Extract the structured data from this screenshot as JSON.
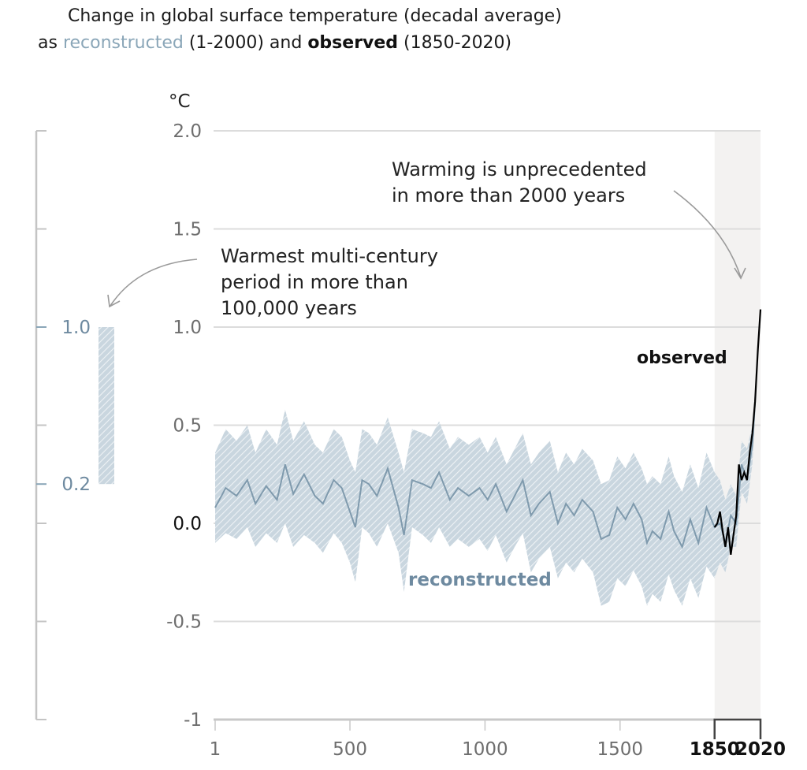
{
  "title": {
    "line1": "Change in global surface temperature (decadal average)",
    "line2_prefix": "as ",
    "line2_reconstructed": "reconstructed",
    "line2_mid": " (1-2000) and ",
    "line2_observed": "observed",
    "line2_suffix": " (1850-2020)"
  },
  "colors": {
    "reconstructed": "#7f9aad",
    "reconstructed_band": "#b9cad6",
    "observed": "#000000",
    "grid": "#dcdcdc",
    "shade": "#f3f2f1"
  },
  "chart_data": {
    "type": "line",
    "title": "Change in global surface temperature (decadal average) as reconstructed (1-2000) and observed (1850-2020)",
    "ylabel": "°C",
    "xlabel": "",
    "ylim": [
      -1,
      2
    ],
    "xlim": [
      1,
      2020
    ],
    "grid": true,
    "y_ticks": [
      "2.0",
      "1.5",
      "1.0",
      "0.5",
      "0.0",
      "-0.5",
      "-1"
    ],
    "y_tick_values": [
      2.0,
      1.5,
      1.0,
      0.5,
      0.0,
      -0.5,
      -1
    ],
    "x_ticks": [
      "1",
      "500",
      "1000",
      "1500"
    ],
    "x_tick_values": [
      1,
      500,
      1000,
      1500
    ],
    "x_ticks_bold": [
      "1850",
      "2020"
    ],
    "x_ticks_bold_values": [
      1850,
      2020
    ],
    "shaded_period": [
      1850,
      2020
    ],
    "series": [
      {
        "name": "reconstructed",
        "x": [
          1,
          40,
          80,
          120,
          150,
          190,
          230,
          260,
          290,
          330,
          370,
          400,
          440,
          470,
          500,
          520,
          545,
          570,
          600,
          640,
          680,
          700,
          730,
          770,
          800,
          830,
          870,
          900,
          940,
          980,
          1010,
          1040,
          1080,
          1110,
          1140,
          1170,
          1200,
          1240,
          1270,
          1300,
          1330,
          1360,
          1400,
          1430,
          1460,
          1490,
          1520,
          1550,
          1580,
          1600,
          1620,
          1650,
          1680,
          1700,
          1730,
          1760,
          1790,
          1820,
          1850,
          1870,
          1890,
          1910,
          1930,
          1950,
          1970,
          1990,
          2000
        ],
        "y": [
          0.08,
          0.18,
          0.14,
          0.22,
          0.1,
          0.19,
          0.12,
          0.3,
          0.15,
          0.25,
          0.14,
          0.1,
          0.22,
          0.18,
          0.06,
          -0.02,
          0.22,
          0.2,
          0.14,
          0.28,
          0.08,
          -0.06,
          0.22,
          0.2,
          0.18,
          0.26,
          0.12,
          0.18,
          0.14,
          0.18,
          0.12,
          0.2,
          0.06,
          0.14,
          0.22,
          0.04,
          0.1,
          0.16,
          0.0,
          0.1,
          0.04,
          0.12,
          0.06,
          -0.08,
          -0.06,
          0.08,
          0.02,
          0.1,
          0.02,
          -0.1,
          -0.04,
          -0.08,
          0.06,
          -0.04,
          -0.12,
          0.02,
          -0.1,
          0.08,
          -0.02,
          0.0,
          -0.1,
          0.04,
          0.0,
          0.3,
          0.22,
          0.4,
          0.62
        ],
        "lower": [
          -0.1,
          -0.05,
          -0.08,
          -0.02,
          -0.12,
          -0.05,
          -0.1,
          0.0,
          -0.12,
          -0.06,
          -0.1,
          -0.15,
          -0.05,
          -0.1,
          -0.2,
          -0.3,
          -0.02,
          -0.05,
          -0.12,
          0.0,
          -0.15,
          -0.35,
          -0.02,
          -0.06,
          -0.1,
          -0.02,
          -0.12,
          -0.08,
          -0.12,
          -0.08,
          -0.14,
          -0.06,
          -0.2,
          -0.12,
          -0.05,
          -0.25,
          -0.18,
          -0.12,
          -0.28,
          -0.2,
          -0.25,
          -0.18,
          -0.25,
          -0.42,
          -0.4,
          -0.28,
          -0.32,
          -0.24,
          -0.32,
          -0.42,
          -0.36,
          -0.4,
          -0.26,
          -0.34,
          -0.42,
          -0.28,
          -0.38,
          -0.22,
          -0.28,
          -0.2,
          -0.25,
          -0.12,
          -0.12,
          0.16,
          0.1,
          0.3,
          0.55
        ],
        "upper": [
          0.36,
          0.48,
          0.42,
          0.5,
          0.36,
          0.48,
          0.4,
          0.58,
          0.42,
          0.52,
          0.4,
          0.36,
          0.48,
          0.44,
          0.32,
          0.26,
          0.48,
          0.46,
          0.4,
          0.54,
          0.36,
          0.26,
          0.48,
          0.46,
          0.44,
          0.52,
          0.38,
          0.44,
          0.4,
          0.44,
          0.36,
          0.44,
          0.3,
          0.38,
          0.46,
          0.3,
          0.36,
          0.42,
          0.26,
          0.36,
          0.3,
          0.38,
          0.32,
          0.2,
          0.22,
          0.34,
          0.28,
          0.36,
          0.28,
          0.2,
          0.24,
          0.2,
          0.34,
          0.24,
          0.16,
          0.3,
          0.18,
          0.36,
          0.26,
          0.22,
          0.12,
          0.2,
          0.14,
          0.42,
          0.38,
          0.5,
          0.68
        ]
      },
      {
        "name": "observed",
        "x": [
          1850,
          1860,
          1870,
          1880,
          1890,
          1900,
          1910,
          1920,
          1930,
          1940,
          1950,
          1960,
          1970,
          1980,
          1990,
          2000,
          2010,
          2020
        ],
        "y": [
          -0.02,
          0.0,
          0.06,
          -0.04,
          -0.12,
          -0.02,
          -0.16,
          -0.06,
          0.04,
          0.3,
          0.22,
          0.26,
          0.22,
          0.36,
          0.46,
          0.62,
          0.88,
          1.09
        ]
      }
    ],
    "inset": {
      "name": "warmest multi-century period",
      "tick_labels": [
        "1.0",
        "0.2"
      ],
      "range": [
        0.2,
        1.0
      ]
    },
    "annotations": [
      "Warming is unprecedented",
      "in more than 2000 years",
      "Warmest multi-century",
      "period in more than",
      "100,000 years"
    ],
    "series_labels": [
      "observed",
      "reconstructed"
    ]
  }
}
